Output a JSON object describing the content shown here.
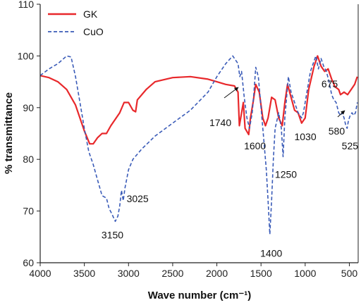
{
  "chart_data": {
    "type": "line",
    "title": "",
    "xlabel": "Wave number (cm⁻¹)",
    "ylabel": "% transmittance",
    "xlim": [
      4000,
      400
    ],
    "ylim": [
      60,
      110
    ],
    "x_ticks": [
      4000,
      3500,
      3000,
      2500,
      2000,
      1500,
      1000,
      500
    ],
    "y_ticks": [
      60,
      70,
      80,
      90,
      100,
      110
    ],
    "grid": false,
    "legend_position": "top-left",
    "series": [
      {
        "name": "GK",
        "color": "#e8282b",
        "style": "solid",
        "points": [
          [
            4000,
            96.2
          ],
          [
            3900,
            95.8
          ],
          [
            3800,
            95
          ],
          [
            3700,
            93.5
          ],
          [
            3600,
            90.5
          ],
          [
            3500,
            85.5
          ],
          [
            3440,
            83
          ],
          [
            3400,
            83
          ],
          [
            3350,
            84.2
          ],
          [
            3300,
            85
          ],
          [
            3250,
            85
          ],
          [
            3200,
            86.5
          ],
          [
            3100,
            89
          ],
          [
            3050,
            91
          ],
          [
            3000,
            91
          ],
          [
            2950,
            89.5
          ],
          [
            2920,
            89.2
          ],
          [
            2900,
            91.5
          ],
          [
            2800,
            93.5
          ],
          [
            2700,
            95
          ],
          [
            2500,
            95.8
          ],
          [
            2300,
            96
          ],
          [
            2100,
            95.5
          ],
          [
            2000,
            95
          ],
          [
            1900,
            94.5
          ],
          [
            1800,
            94.2
          ],
          [
            1760,
            93
          ],
          [
            1745,
            86.5
          ],
          [
            1730,
            88
          ],
          [
            1700,
            91
          ],
          [
            1680,
            86
          ],
          [
            1640,
            84.8
          ],
          [
            1620,
            88
          ],
          [
            1590,
            91
          ],
          [
            1560,
            94.5
          ],
          [
            1520,
            93
          ],
          [
            1480,
            88
          ],
          [
            1450,
            86.5
          ],
          [
            1420,
            88
          ],
          [
            1380,
            92
          ],
          [
            1340,
            91.5
          ],
          [
            1300,
            88
          ],
          [
            1260,
            86.5
          ],
          [
            1230,
            91
          ],
          [
            1200,
            94.5
          ],
          [
            1160,
            92
          ],
          [
            1120,
            89.5
          ],
          [
            1080,
            89
          ],
          [
            1040,
            87
          ],
          [
            1000,
            88
          ],
          [
            960,
            93.5
          ],
          [
            900,
            98
          ],
          [
            860,
            100
          ],
          [
            820,
            98
          ],
          [
            780,
            97
          ],
          [
            740,
            97.5
          ],
          [
            700,
            95.5
          ],
          [
            660,
            94
          ],
          [
            620,
            93.5
          ],
          [
            600,
            92.5
          ],
          [
            560,
            93
          ],
          [
            520,
            92.5
          ],
          [
            480,
            93.5
          ],
          [
            440,
            94.5
          ],
          [
            410,
            96
          ]
        ]
      },
      {
        "name": "CuO",
        "color": "#3a5bb8",
        "style": "dashed",
        "points": [
          [
            4000,
            96.2
          ],
          [
            3900,
            97.5
          ],
          [
            3800,
            98.5
          ],
          [
            3700,
            100
          ],
          [
            3650,
            99.8
          ],
          [
            3600,
            96
          ],
          [
            3550,
            91
          ],
          [
            3500,
            86
          ],
          [
            3450,
            81.5
          ],
          [
            3400,
            79
          ],
          [
            3350,
            76
          ],
          [
            3300,
            73
          ],
          [
            3250,
            72.5
          ],
          [
            3220,
            70.5
          ],
          [
            3190,
            69.5
          ],
          [
            3150,
            68
          ],
          [
            3120,
            69
          ],
          [
            3100,
            71
          ],
          [
            3080,
            74
          ],
          [
            3060,
            72
          ],
          [
            3040,
            74.5
          ],
          [
            3000,
            78
          ],
          [
            2950,
            80
          ],
          [
            2850,
            82
          ],
          [
            2700,
            84.5
          ],
          [
            2500,
            87
          ],
          [
            2300,
            89.5
          ],
          [
            2100,
            93
          ],
          [
            2000,
            96
          ],
          [
            1900,
            98.5
          ],
          [
            1820,
            100
          ],
          [
            1760,
            98.5
          ],
          [
            1740,
            96
          ],
          [
            1720,
            97
          ],
          [
            1690,
            92
          ],
          [
            1660,
            88
          ],
          [
            1630,
            86
          ],
          [
            1600,
            89
          ],
          [
            1580,
            93
          ],
          [
            1560,
            97.8
          ],
          [
            1530,
            96
          ],
          [
            1500,
            90
          ],
          [
            1470,
            84
          ],
          [
            1440,
            78
          ],
          [
            1420,
            72
          ],
          [
            1400,
            65.5
          ],
          [
            1380,
            72
          ],
          [
            1360,
            80
          ],
          [
            1340,
            86
          ],
          [
            1300,
            89
          ],
          [
            1270,
            86
          ],
          [
            1250,
            80.5
          ],
          [
            1230,
            88
          ],
          [
            1210,
            92
          ],
          [
            1190,
            96
          ],
          [
            1160,
            93
          ],
          [
            1120,
            91
          ],
          [
            1080,
            89
          ],
          [
            1040,
            88
          ],
          [
            1020,
            89
          ],
          [
            980,
            93
          ],
          [
            940,
            97
          ],
          [
            900,
            99
          ],
          [
            880,
            100
          ],
          [
            850,
            97.5
          ],
          [
            820,
            99.5
          ],
          [
            790,
            98
          ],
          [
            760,
            97
          ],
          [
            730,
            95
          ],
          [
            700,
            92.5
          ],
          [
            675,
            91.5
          ],
          [
            650,
            91
          ],
          [
            620,
            89
          ],
          [
            600,
            88.5
          ],
          [
            580,
            89
          ],
          [
            560,
            88
          ],
          [
            540,
            86.5
          ],
          [
            525,
            86
          ],
          [
            510,
            87.5
          ],
          [
            490,
            88.5
          ],
          [
            470,
            89
          ],
          [
            450,
            88.5
          ],
          [
            430,
            89
          ],
          [
            410,
            91
          ]
        ]
      }
    ],
    "annotations": [
      {
        "text": "3150",
        "x": 3150,
        "y": 68
      },
      {
        "text": "3025",
        "x": 3025,
        "y": 72
      },
      {
        "text": "1740",
        "x": 1740,
        "y": 93
      },
      {
        "text": "1600",
        "x": 1600,
        "y": 86
      },
      {
        "text": "1400",
        "x": 1400,
        "y": 65.5
      },
      {
        "text": "1250",
        "x": 1250,
        "y": 80.5
      },
      {
        "text": "1030",
        "x": 1030,
        "y": 87
      },
      {
        "text": "675",
        "x": 675,
        "y": 91.5
      },
      {
        "text": "580",
        "x": 580,
        "y": 89
      },
      {
        "text": "525",
        "x": 525,
        "y": 86
      }
    ]
  }
}
